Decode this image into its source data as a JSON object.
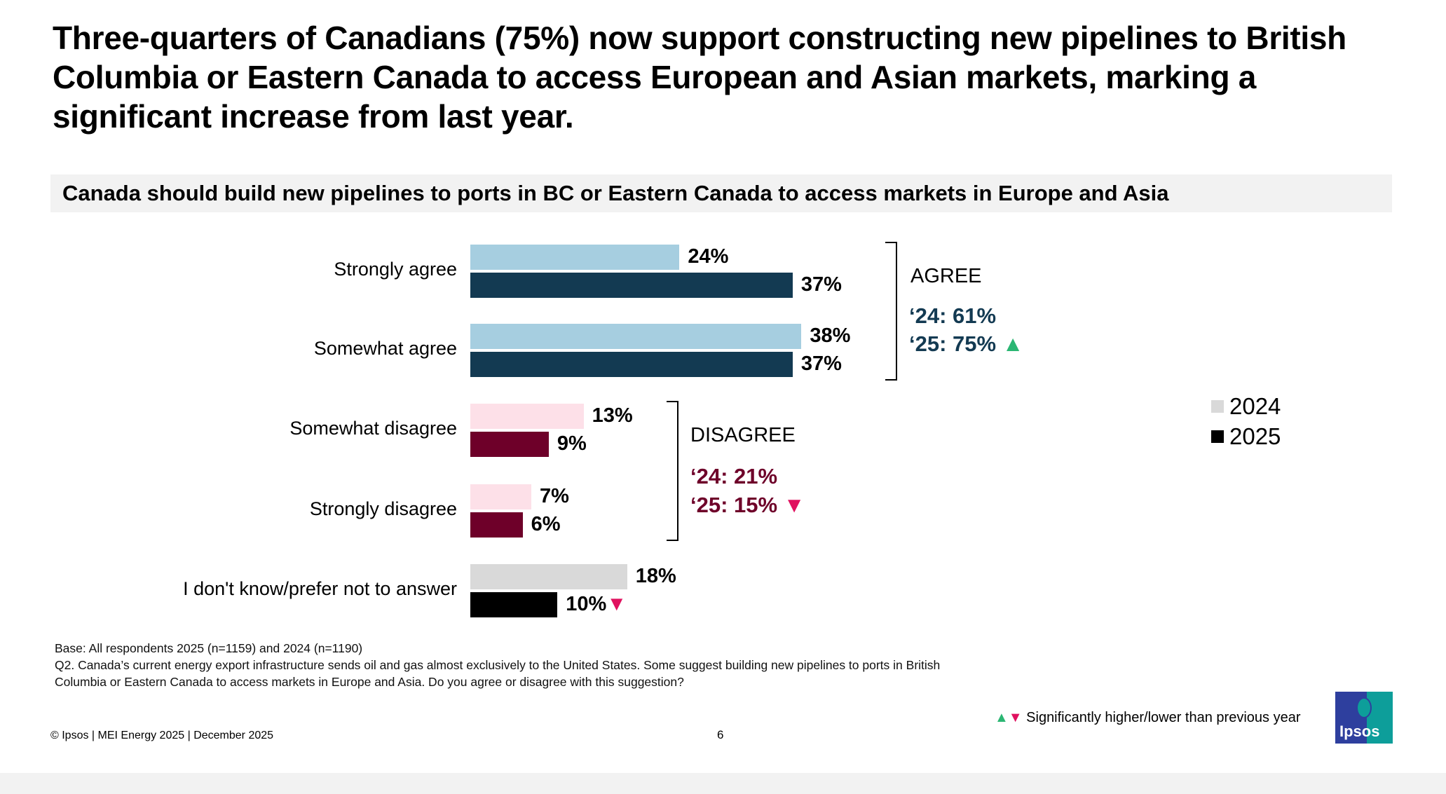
{
  "title": "Three-quarters of Canadians (75%) now support constructing new pipelines to British Columbia or Eastern Canada to access European and Asian markets, marking a significant increase from last year.",
  "chart_data": {
    "type": "bar",
    "orientation": "horizontal",
    "title": "Canada should build new pipelines to ports in BC or Eastern Canada to access markets in Europe and Asia",
    "categories": [
      "Strongly agree",
      "Somewhat agree",
      "Somewhat disagree",
      "Strongly disagree",
      "I don't know/prefer not to answer"
    ],
    "series": [
      {
        "name": "2024",
        "values": [
          24,
          38,
          13,
          7,
          18
        ],
        "labels": [
          "24%",
          "38%",
          "13%",
          "7%",
          "18%"
        ],
        "colors": [
          "#a6cee0",
          "#a6cee0",
          "#fde0e8",
          "#fde0e8",
          "#d9d9d9"
        ]
      },
      {
        "name": "2025",
        "values": [
          37,
          37,
          9,
          6,
          10
        ],
        "labels": [
          "37%",
          "37%",
          "9%",
          "6%",
          "10%"
        ],
        "colors": [
          "#133a52",
          "#133a52",
          "#6e0029",
          "#6e0029",
          "#000000"
        ],
        "significance": [
          null,
          null,
          null,
          null,
          "down"
        ]
      }
    ],
    "unit": "%",
    "groups": [
      {
        "label": "AGREE",
        "line_2024": "‘24: 61%",
        "line_2025": "‘25: 75%",
        "significance": "up",
        "color": "#133a52"
      },
      {
        "label": "DISAGREE",
        "line_2024": "‘24: 21%",
        "line_2025": "‘25: 15%",
        "significance": "down",
        "color": "#6e0029"
      }
    ],
    "legend": {
      "position": "right",
      "items": [
        {
          "label": "2024",
          "color": "#d9d9d9"
        },
        {
          "label": "2025",
          "color": "#000000"
        }
      ]
    },
    "grid": false
  },
  "colors": {
    "up": "#2bb673",
    "down": "#e0115f"
  },
  "footnotes": {
    "base": "Base: All respondents 2025 (n=1159) and 2024 (n=1190)",
    "question_line1": "Q2. Canada’s current energy export infrastructure sends oil and gas almost exclusively to the United States. Some suggest building new pipelines to ports in British",
    "question_line2": "Columbia or Eastern Canada to access markets in Europe and Asia. Do you agree or disagree with this suggestion?"
  },
  "footer": {
    "copyright": "© Ipsos | MEI Energy 2025 | December 2025",
    "page": "6",
    "significance_note": "Significantly higher/lower than previous year",
    "logo_text": "Ipsos"
  }
}
